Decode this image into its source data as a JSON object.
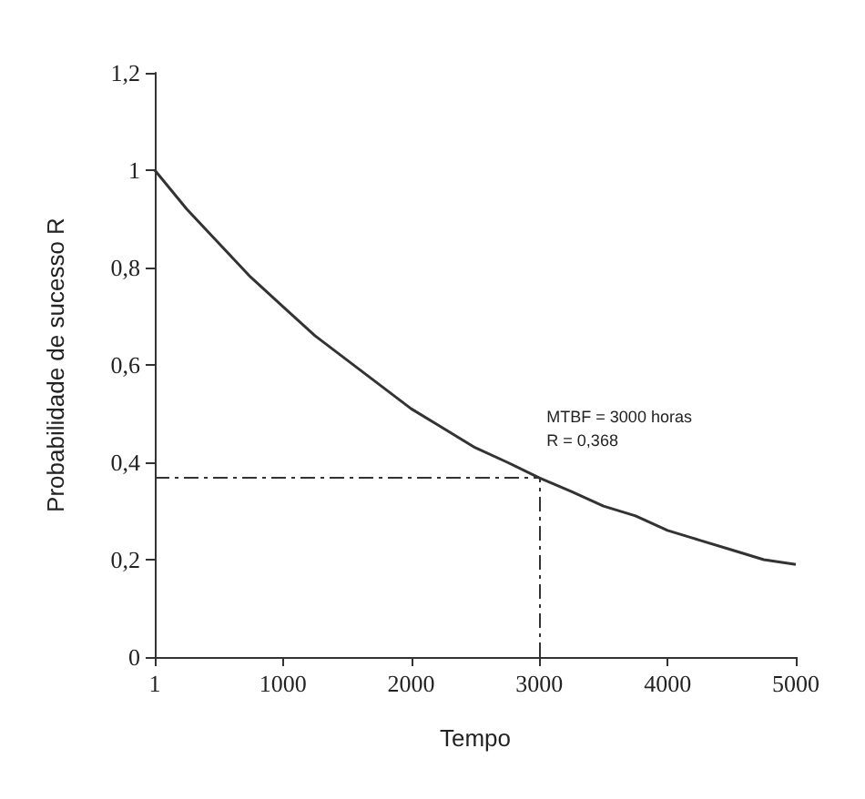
{
  "chart_data": {
    "type": "line",
    "xlabel": "Tempo",
    "ylabel": "Probabilidade de sucesso R",
    "x": [
      1,
      250,
      500,
      750,
      1000,
      1250,
      1500,
      1750,
      2000,
      2250,
      2500,
      2750,
      3000,
      3250,
      3500,
      3750,
      4000,
      4250,
      4500,
      4750,
      5000
    ],
    "series": [
      {
        "color": "#333333",
        "values": [
          1,
          0.92,
          0.85,
          0.78,
          0.72,
          0.66,
          0.61,
          0.56,
          0.51,
          0.47,
          0.43,
          0.4,
          0.368,
          0.34,
          0.31,
          0.29,
          0.26,
          0.24,
          0.22,
          0.2,
          0.19
        ]
      }
    ],
    "xlim": [
      1,
      5000
    ],
    "xticks": [
      1,
      1000,
      2000,
      3000,
      4000,
      5000
    ],
    "ylim": [
      0,
      1.2
    ],
    "yticks": [
      0,
      {
        "value": 0.2,
        "label": "0,2"
      },
      {
        "value": 0.4,
        "label": "0,4"
      },
      {
        "value": 0.6,
        "label": "0,6"
      },
      {
        "value": 0.8,
        "label": "0,8"
      },
      1,
      {
        "value": 1.2,
        "label": "1,2"
      }
    ],
    "ref_lines": [
      {
        "axis": "y",
        "value": 0.368,
        "color": "#333333",
        "line_style": "dashdot"
      },
      {
        "axis": "x",
        "value": 3000,
        "color": "#333333",
        "line_style": "dashdot"
      }
    ],
    "annotations": [
      {
        "text": "MTBF = 3000 horas\nR = 0,368",
        "x": 3000,
        "y": 0.368
      }
    ],
    "marker": "none",
    "line_style": "solid",
    "grid": false
  }
}
